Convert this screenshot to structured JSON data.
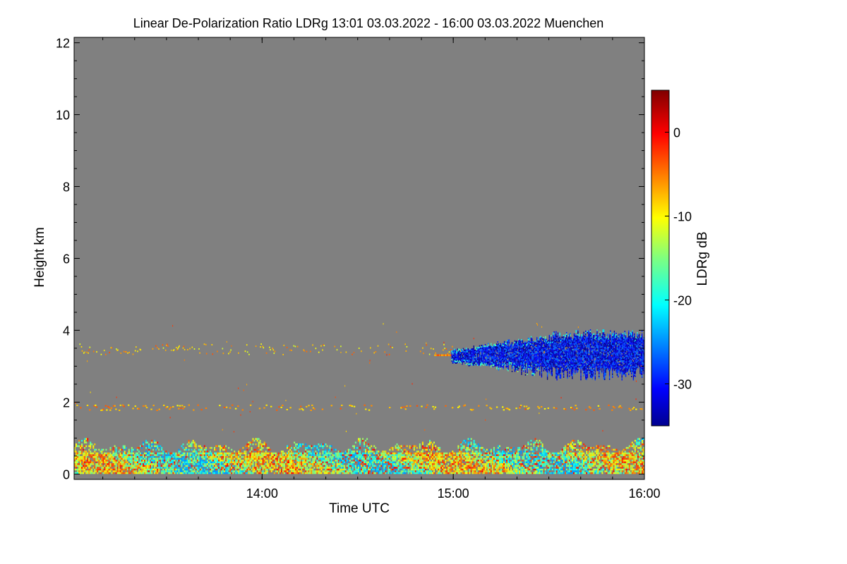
{
  "chart_data": {
    "type": "heatmap",
    "title": "Linear De-Polarization Ratio LDRg   13:01 03.03.2022 - 16:00 03.03.2022 Muenchen",
    "xlabel": "Time UTC",
    "ylabel": "Height km",
    "xlim_hours": [
      13.0167,
      16.0
    ],
    "ylim_km": [
      -0.15,
      12.15
    ],
    "x_ticks": [
      {
        "value": 14,
        "label": "14:00"
      },
      {
        "value": 15,
        "label": "15:00"
      },
      {
        "value": 16,
        "label": "16:00"
      }
    ],
    "y_ticks": [
      {
        "value": 0,
        "label": "0"
      },
      {
        "value": 2,
        "label": "2"
      },
      {
        "value": 4,
        "label": "4"
      },
      {
        "value": 6,
        "label": "6"
      },
      {
        "value": 8,
        "label": "8"
      },
      {
        "value": 10,
        "label": "10"
      },
      {
        "value": 12,
        "label": "12"
      }
    ],
    "colorbar": {
      "label": "LDRg dB",
      "range": [
        -35,
        5
      ],
      "ticks": [
        {
          "value": 0,
          "label": "0"
        },
        {
          "value": -10,
          "label": "-10"
        },
        {
          "value": -20,
          "label": "-20"
        },
        {
          "value": -30,
          "label": "-30"
        }
      ]
    },
    "background_color": "#808080",
    "regions": [
      {
        "name": "boundary-layer",
        "t_start": 13.0167,
        "t_end": 16.0,
        "h_bottom": 0.0,
        "h_top": 1.0,
        "ldr_range": [
          -20,
          0
        ]
      },
      {
        "name": "cloud-layer",
        "t_start": 14.9,
        "t_end": 16.0,
        "h_bottom": 2.6,
        "h_top": 4.0,
        "ldr_range": [
          -35,
          -25
        ]
      },
      {
        "name": "aerosol-layer-1.8km",
        "t_start": 13.0167,
        "t_end": 16.0,
        "h_bottom": 1.75,
        "h_top": 1.9,
        "ldr_range": [
          -10,
          -3
        ]
      },
      {
        "name": "aerosol-layer-3.4km",
        "t_start": 13.0167,
        "t_end": 15.0,
        "h_bottom": 3.3,
        "h_top": 3.6,
        "ldr_range": [
          -12,
          -3
        ]
      }
    ]
  }
}
